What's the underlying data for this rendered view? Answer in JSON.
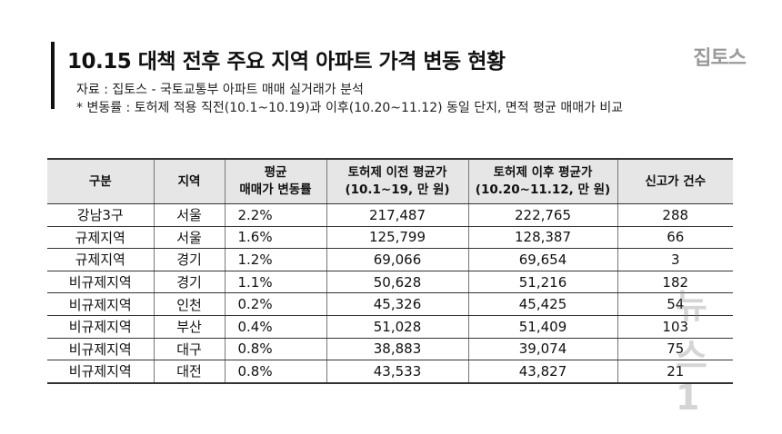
{
  "header": {
    "title": "10.15 대책 전후 주요 지역 아파트 가격 변동 현황",
    "logo": "집토스",
    "source": "자료 : 집토스 - 국토교통부 아파트 매매 실거래가 분석",
    "note": "* 변동률 : 토허제 적용 직전(10.1~10.19)과 이후(10.20~11.12) 동일 단지, 면적 평균 매매가 비교"
  },
  "table": {
    "headers": [
      [
        "구분"
      ],
      [
        "지역"
      ],
      [
        "평균",
        "매매가 변동률"
      ],
      [
        "토허제 이전 평균가",
        "(10.1~19, 만 원)"
      ],
      [
        "토허제 이후 평균가",
        "(10.20~11.12, 만 원)"
      ],
      [
        "신고가 건수"
      ]
    ],
    "rows": [
      [
        "강남3구",
        "서울",
        "2.2%",
        "217,487",
        "222,765",
        "288"
      ],
      [
        "규제지역",
        "서울",
        "1.6%",
        "125,799",
        "128,387",
        "66"
      ],
      [
        "규제지역",
        "경기",
        "1.2%",
        "69,066",
        "69,654",
        "3"
      ],
      [
        "비규제지역",
        "경기",
        "1.1%",
        "50,628",
        "51,216",
        "182"
      ],
      [
        "비규제지역",
        "인천",
        "0.2%",
        "45,326",
        "45,425",
        "54"
      ],
      [
        "비규제지역",
        "부산",
        "0.4%",
        "51,028",
        "51,409",
        "103"
      ],
      [
        "비규제지역",
        "대구",
        "0.8%",
        "38,883",
        "39,074",
        "75"
      ],
      [
        "비규제지역",
        "대전",
        "0.8%",
        "43,533",
        "43,827",
        "21"
      ]
    ]
  },
  "watermark": {
    "text": "뉴스1"
  }
}
